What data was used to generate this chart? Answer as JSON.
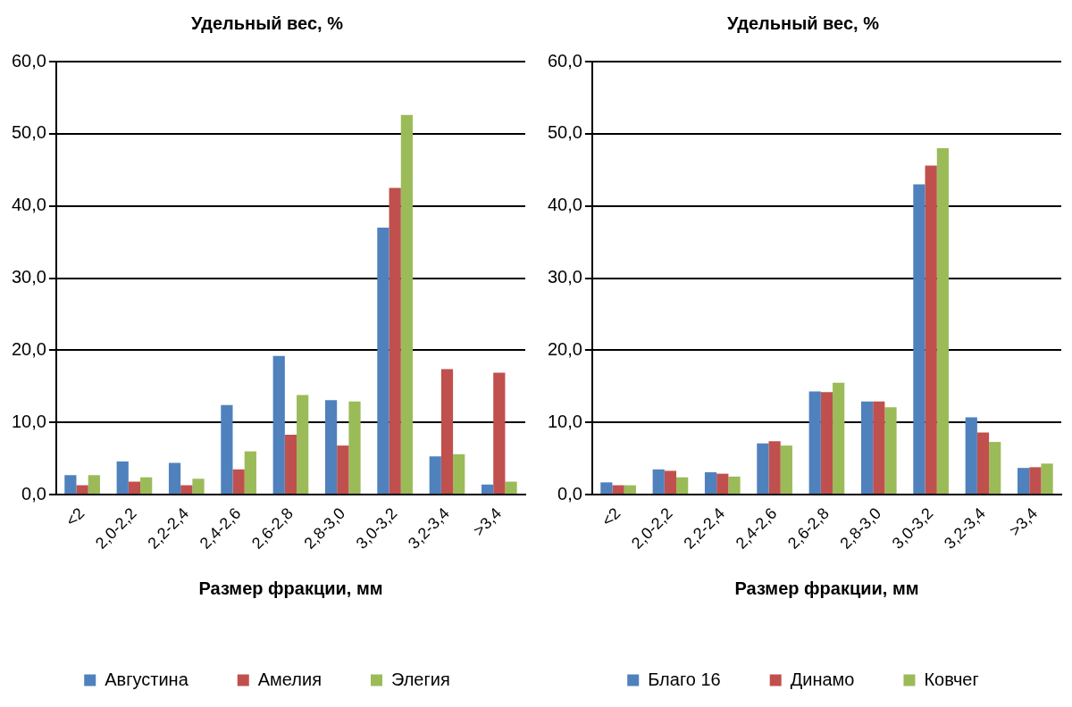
{
  "chart_data": [
    {
      "type": "bar",
      "title": "Удельный вес, %",
      "xlabel": "Размер фракции, мм",
      "categories": [
        "<2",
        "2,0-2,2",
        "2,2-2,4",
        "2,4-2,6",
        "2,6-2,8",
        "2,8-3,0",
        "3,0-3,2",
        "3,2-3,4",
        ">3,4"
      ],
      "series": [
        {
          "name": "Августина",
          "color": "#4f81bd",
          "values": [
            2.7,
            4.6,
            4.4,
            12.4,
            19.2,
            13.1,
            37.0,
            5.3,
            1.4
          ]
        },
        {
          "name": "Амелия",
          "color": "#c0504d",
          "values": [
            1.3,
            1.8,
            1.3,
            3.5,
            8.3,
            6.8,
            42.5,
            17.4,
            16.9
          ]
        },
        {
          "name": "Элегия",
          "color": "#9bbb59",
          "values": [
            2.7,
            2.4,
            2.2,
            6.0,
            13.8,
            12.9,
            52.6,
            5.6,
            1.8
          ]
        }
      ],
      "ylim": [
        0,
        60
      ],
      "yticks": [
        {
          "value": 0,
          "label": "0,0"
        },
        {
          "value": 10,
          "label": "10,0"
        },
        {
          "value": 20,
          "label": "20,0"
        },
        {
          "value": 30,
          "label": "30,0"
        },
        {
          "value": 40,
          "label": "40,0"
        },
        {
          "value": 50,
          "label": "50,0"
        },
        {
          "value": 60,
          "label": "60,0"
        }
      ],
      "grid": "y",
      "legend": "bottom"
    },
    {
      "type": "bar",
      "title": "Удельный вес, %",
      "xlabel": "Размер фракции, мм",
      "categories": [
        "<2",
        "2,0-2,2",
        "2,2-2,4",
        "2,4-2,6",
        "2,6-2,8",
        "2,8-3,0",
        "3,0-3,2",
        "3,2-3,4",
        ">3,4"
      ],
      "series": [
        {
          "name": "Благо 16",
          "color": "#4f81bd",
          "values": [
            1.7,
            3.5,
            3.1,
            7.1,
            14.3,
            12.9,
            43.0,
            10.7,
            3.7
          ]
        },
        {
          "name": "Динамо",
          "color": "#c0504d",
          "values": [
            1.3,
            3.3,
            2.9,
            7.4,
            14.2,
            12.9,
            45.6,
            8.6,
            3.8
          ]
        },
        {
          "name": "Ковчег",
          "color": "#9bbb59",
          "values": [
            1.3,
            2.4,
            2.5,
            6.8,
            15.5,
            12.1,
            48.0,
            7.3,
            4.3
          ]
        }
      ],
      "ylim": [
        0,
        60
      ],
      "yticks": [
        {
          "value": 0,
          "label": "0,0"
        },
        {
          "value": 10,
          "label": "10,0"
        },
        {
          "value": 20,
          "label": "20,0"
        },
        {
          "value": 30,
          "label": "30,0"
        },
        {
          "value": 40,
          "label": "40,0"
        },
        {
          "value": 50,
          "label": "50,0"
        },
        {
          "value": 60,
          "label": "60,0"
        }
      ],
      "grid": "y",
      "legend": "bottom"
    }
  ]
}
